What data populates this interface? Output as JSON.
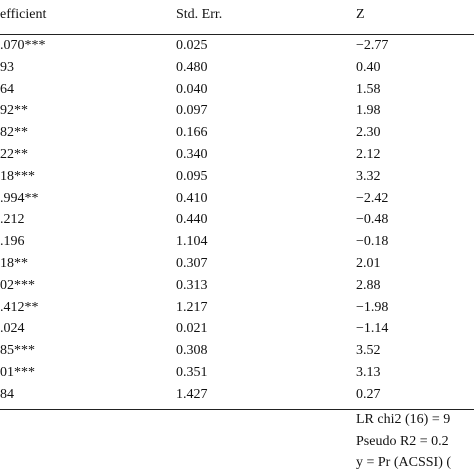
{
  "table": {
    "header": [
      "efficient",
      "Std. Err.",
      "Z"
    ],
    "rows": [
      [
        ".070***",
        "0.025",
        "−2.77"
      ],
      [
        "93",
        "0.480",
        "0.40"
      ],
      [
        "64",
        "0.040",
        "1.58"
      ],
      [
        "92**",
        "0.097",
        "1.98"
      ],
      [
        "82**",
        "0.166",
        "2.30"
      ],
      [
        "22**",
        "0.340",
        "2.12"
      ],
      [
        "18***",
        "0.095",
        "3.32"
      ],
      [
        ".994**",
        "0.410",
        "−2.42"
      ],
      [
        ".212",
        "0.440",
        "−0.48"
      ],
      [
        ".196",
        "1.104",
        "−0.18"
      ],
      [
        "18**",
        "0.307",
        "2.01"
      ],
      [
        "02***",
        "0.313",
        "2.88"
      ],
      [
        ".412**",
        "1.217",
        "−1.98"
      ],
      [
        ".024",
        "0.021",
        "−1.14"
      ],
      [
        "85***",
        "0.308",
        "3.52"
      ],
      [
        "01***",
        "0.351",
        "3.13"
      ],
      [
        "84",
        "1.427",
        "0.27"
      ]
    ]
  },
  "footer": [
    "LR chi2 (16) = 9",
    "Pseudo R2 = 0.2",
    "y = Pr (ACSSI) ("
  ]
}
